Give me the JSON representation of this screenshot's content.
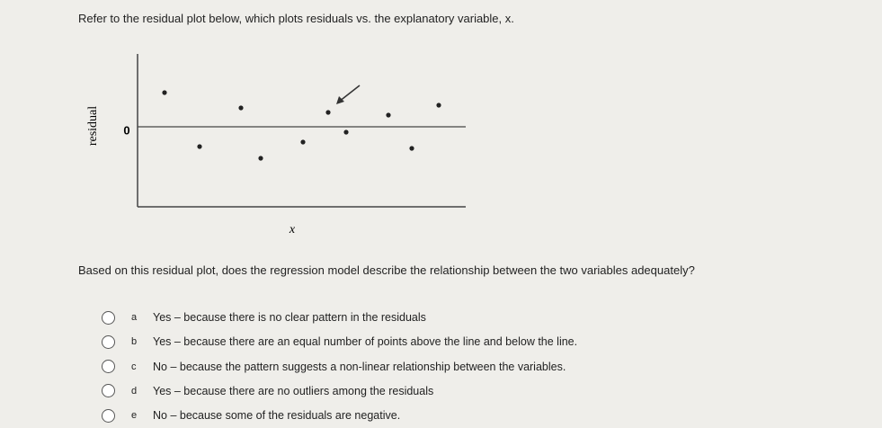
{
  "question": "Refer to the residual plot below, which plots residuals vs. the explanatory variable, x.",
  "chart_data": {
    "type": "scatter",
    "ylabel": "residual",
    "xlabel": "x",
    "x": [
      3.0,
      6.9,
      11.5,
      13.7,
      18.4,
      21.2,
      23.2,
      27.9,
      30.5,
      33.5
    ],
    "values": [
      3.8,
      -2.2,
      2.1,
      -3.5,
      -1.7,
      1.6,
      -0.6,
      1.3,
      -2.4,
      2.4
    ],
    "xlim": [
      0,
      36.5
    ],
    "ylim": [
      -8.9,
      8.1
    ],
    "yticks": [
      0
    ],
    "color": "#222222"
  },
  "prompt": "Based on this residual plot, does the regression model describe the relationship between the two variables adequately?",
  "options": [
    {
      "letter": "a",
      "text": "Yes – because there is no clear pattern in the residuals"
    },
    {
      "letter": "b",
      "text": "Yes – because there are an equal number of points above the line and below the line."
    },
    {
      "letter": "c",
      "text": "No – because the pattern suggests a non-linear relationship between the variables."
    },
    {
      "letter": "d",
      "text": "Yes – because there are no outliers among the residuals"
    },
    {
      "letter": "e",
      "text": "No – because some of the residuals are negative."
    }
  ]
}
